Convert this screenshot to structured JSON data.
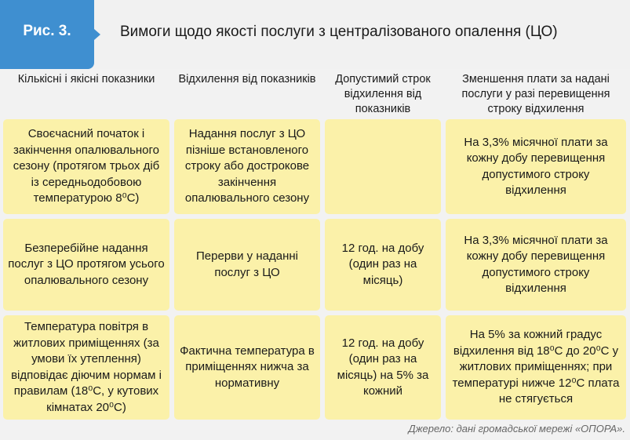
{
  "figure": {
    "label": "Рис. 3.",
    "title": "Вимоги щодо якості послуги з централізованого опалення (ЦО)"
  },
  "columns": [
    "Кількісні і якісні показники",
    "Відхилення від показників",
    "Допустимий строк відхилення від показників",
    "Зменшення плати за надані послуги у разі перевищення строку відхилення"
  ],
  "rows": [
    {
      "indicator": "Своєчасний початок і закінчення опалювального сезону (протягом трьох діб із середньодобовою температурою 8⁰С)",
      "deviation": "Надання послуг з ЦО пізніше встановленого строку або дострокове закінчення опалювального сезону",
      "allowed_term": "",
      "reduction": "На 3,3% місячної плати за кожну добу перевищення допустимого строку відхилення"
    },
    {
      "indicator": "Безперебійне надання послуг з ЦО протягом усього опалювального сезону",
      "deviation": "Перерви у наданні послуг з ЦО",
      "allowed_term": "12 год. на добу (один раз на місяць)",
      "reduction": "На 3,3% місячної плати за кожну добу перевищення допустимого строку відхилення"
    },
    {
      "indicator": "Температура повітря в житлових приміщеннях (за умови їх утеплення) відповідає діючим нормам і правилам (18⁰С, у кутових кімнатах 20⁰С)",
      "deviation": "Фактична температура в приміщеннях нижча за нормативну",
      "allowed_term": "12 год. на добу (один раз на місяць) на 5% за кожний",
      "reduction": "На 5% за кожний градус відхилення від 18⁰С до 20⁰С у житлових приміщеннях; при температурі нижче 12⁰С плата не стягується"
    }
  ],
  "source": "Джерело: дані громадської мережі «ОПОРА».",
  "colors": {
    "badge": "#3f8fd0",
    "cell_fill": "#fbf1a9",
    "background": "#f2f2f2"
  }
}
